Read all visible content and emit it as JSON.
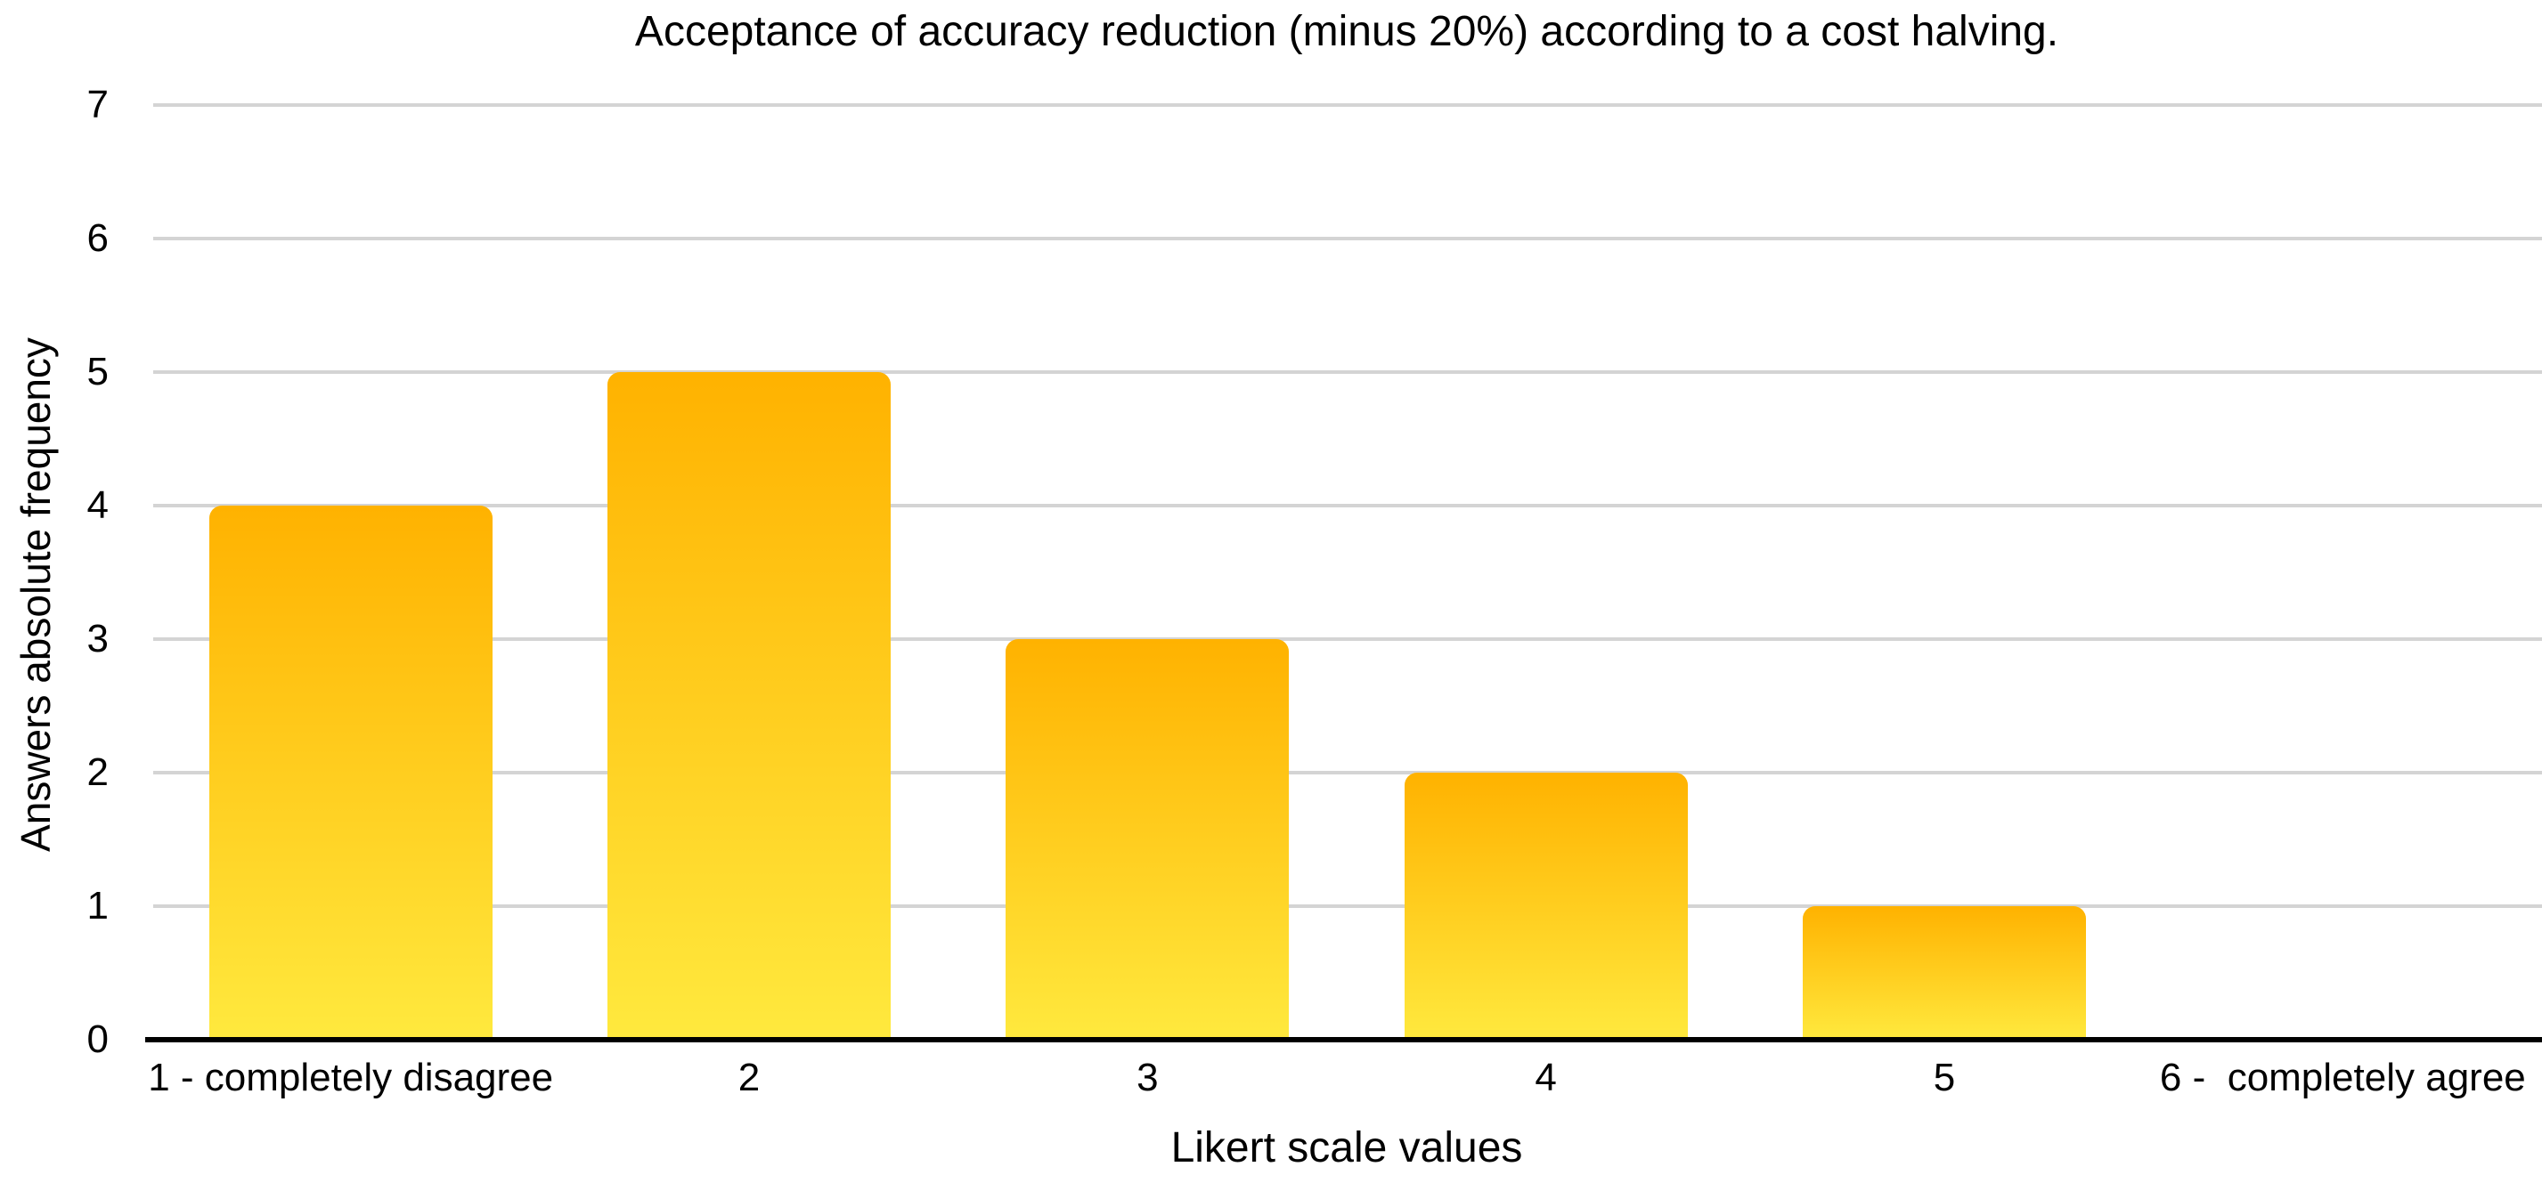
{
  "chart_data": {
    "type": "bar",
    "title": "Acceptance of accuracy reduction (minus 20%) according to a cost halving.",
    "xlabel": "Likert scale values",
    "ylabel": "Answers absolute frequency",
    "categories": [
      "1 - completely disagree",
      "2",
      "3",
      "4",
      "5",
      "6 -  completely agree"
    ],
    "values": [
      4,
      5,
      3,
      2,
      1,
      0
    ],
    "ylim": [
      0,
      7
    ],
    "ytick_step": 1,
    "yticks": [
      0,
      1,
      2,
      3,
      4,
      5,
      6,
      7
    ],
    "grid": "horizontal",
    "legend": "none",
    "colors": {
      "bar_gradient_top": "#FFB200",
      "bar_gradient_bottom": "#FFE93E",
      "gridline": "#D4D4D4",
      "axis_line": "#000000",
      "text": "#000000",
      "background": "#FFFFFF"
    }
  }
}
